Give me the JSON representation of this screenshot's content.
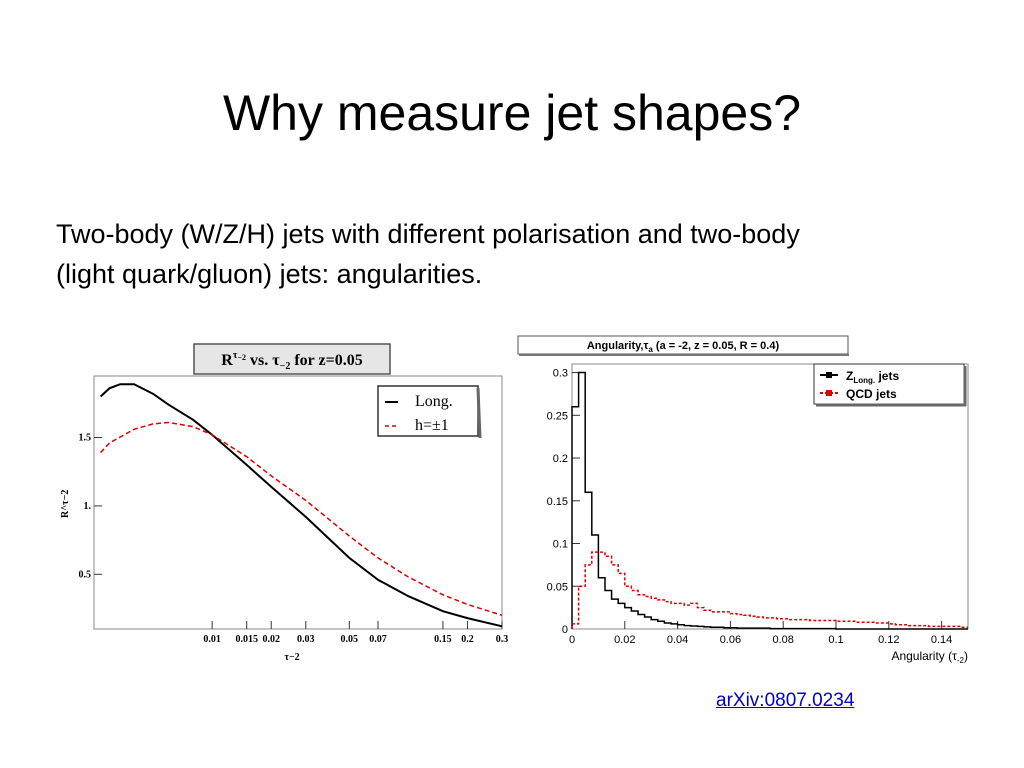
{
  "slide": {
    "title": "Why measure jet shapes?",
    "body_line1": "Two-body (W/Z/H) jets with different polarisation and two-body",
    "body_line2": "(light quark/gluon) jets: angularities.",
    "citation": "arXiv:0807.0234"
  },
  "chart_data": [
    {
      "type": "line",
      "title": "R^τ−2 vs. τ−2 for z=0.05",
      "title_parts": {
        "r": "R",
        "sup": "τ",
        "sup2": "−2",
        "vs": " vs. τ",
        "sub": "−2",
        "rest": " for z=0.05"
      },
      "xlabel": "τ−2",
      "ylabel": "R^τ−2",
      "xscale": "log",
      "xlim": [
        0.0025,
        0.3
      ],
      "ylim": [
        0.1,
        1.95
      ],
      "xticks": [
        0.01,
        0.015,
        0.02,
        0.03,
        0.05,
        0.07,
        0.15,
        0.2,
        0.3
      ],
      "xtick_labels": [
        "0.01",
        "0.015",
        "0.02",
        "0.03",
        "0.05",
        "0.07",
        "0.15",
        "0.2",
        "0.3"
      ],
      "yticks": [
        0.5,
        1.0,
        1.5
      ],
      "ytick_labels": [
        "0.5",
        "1.",
        "1.5"
      ],
      "legend_position": "top-right",
      "series": [
        {
          "name": "Long.",
          "color": "#000000",
          "dash": "solid",
          "x": [
            0.0027,
            0.003,
            0.0034,
            0.004,
            0.005,
            0.006,
            0.008,
            0.01,
            0.015,
            0.02,
            0.03,
            0.05,
            0.07,
            0.1,
            0.15,
            0.2,
            0.3
          ],
          "y": [
            1.8,
            1.86,
            1.89,
            1.89,
            1.82,
            1.74,
            1.63,
            1.52,
            1.3,
            1.14,
            0.92,
            0.62,
            0.46,
            0.34,
            0.23,
            0.18,
            0.12
          ]
        },
        {
          "name": "h=±1",
          "color": "#dd0000",
          "dash": "dashed",
          "x": [
            0.0027,
            0.003,
            0.004,
            0.005,
            0.006,
            0.008,
            0.01,
            0.015,
            0.02,
            0.03,
            0.05,
            0.07,
            0.1,
            0.15,
            0.2,
            0.3
          ],
          "y": [
            1.39,
            1.46,
            1.56,
            1.6,
            1.61,
            1.58,
            1.52,
            1.36,
            1.22,
            1.04,
            0.78,
            0.62,
            0.48,
            0.35,
            0.28,
            0.2
          ]
        }
      ]
    },
    {
      "type": "histogram",
      "title": "Angularity,τa (a = -2, z = 0.05, R = 0.4)",
      "title_parts": {
        "pre": "Angularity,τ",
        "sub": "a",
        "post": " (a = -2, z = 0.05, R = 0.4)"
      },
      "xlabel": "Angularity (τ-2)",
      "xlabel_parts": {
        "pre": "Angularity (τ",
        "sub": "-2",
        "post": ")"
      },
      "xlim": [
        0,
        0.15
      ],
      "ylim": [
        0,
        0.31
      ],
      "xticks": [
        0.02,
        0.04,
        0.06,
        0.08,
        0.1,
        0.12,
        0.14
      ],
      "xtick_labels": [
        "0.02",
        "0.04",
        "0.06",
        "0.08",
        "0.1",
        "0.12",
        "0.14"
      ],
      "yticks": [
        0.05,
        0.1,
        0.15,
        0.2,
        0.25,
        0.3
      ],
      "ytick_labels": [
        "0.05",
        "0.1",
        "0.15",
        "0.2",
        "0.25",
        "0.3"
      ],
      "bin_edges": [
        0,
        0.0025,
        0.005,
        0.0075,
        0.01,
        0.0125,
        0.015,
        0.0175,
        0.02,
        0.0225,
        0.025,
        0.0275,
        0.03,
        0.0325,
        0.035,
        0.0375,
        0.04,
        0.0425,
        0.045,
        0.0475,
        0.05,
        0.0525,
        0.055,
        0.0575,
        0.06,
        0.0625,
        0.065,
        0.0675,
        0.07,
        0.0725,
        0.075,
        0.0775,
        0.08,
        0.0825,
        0.085,
        0.0875,
        0.09,
        0.0925,
        0.095,
        0.0975,
        0.1,
        0.1025,
        0.105,
        0.1075,
        0.11,
        0.1125,
        0.115,
        0.1175,
        0.12,
        0.1225,
        0.125,
        0.1275,
        0.13,
        0.1325,
        0.135,
        0.1375,
        0.14,
        0.1425,
        0.145,
        0.1475,
        0.15
      ],
      "legend_position": "top-right",
      "series": [
        {
          "name": "Z",
          "name_sub": "Long.",
          "name_post": " jets",
          "color": "#000000",
          "dash": "solid",
          "values": [
            0.26,
            0.3,
            0.16,
            0.11,
            0.06,
            0.045,
            0.035,
            0.03,
            0.025,
            0.021,
            0.017,
            0.014,
            0.011,
            0.009,
            0.007,
            0.006,
            0.005,
            0.004,
            0.0035,
            0.003,
            0.0025,
            0.002,
            0.002,
            0.0015,
            0.0015,
            0.001,
            0.001,
            0.001,
            0.001,
            0.001,
            0.0005,
            0.0005,
            0.0005,
            0.0005,
            0.0005,
            0.0005,
            0.0005,
            0.0005,
            0.0005,
            0.0005,
            0,
            0,
            0,
            0,
            0,
            0,
            0,
            0,
            0,
            0,
            0,
            0,
            0,
            0,
            0,
            0,
            0,
            0,
            0,
            0
          ]
        },
        {
          "name": "QCD jets",
          "color": "#dd0000",
          "dash": "dashed",
          "values": [
            0.006,
            0.05,
            0.075,
            0.09,
            0.09,
            0.085,
            0.075,
            0.065,
            0.05,
            0.045,
            0.04,
            0.038,
            0.036,
            0.034,
            0.032,
            0.03,
            0.03,
            0.028,
            0.03,
            0.025,
            0.022,
            0.02,
            0.02,
            0.02,
            0.018,
            0.017,
            0.016,
            0.015,
            0.014,
            0.013,
            0.013,
            0.012,
            0.012,
            0.011,
            0.011,
            0.011,
            0.01,
            0.01,
            0.01,
            0.01,
            0.009,
            0.009,
            0.009,
            0.008,
            0.008,
            0.008,
            0.007,
            0.007,
            0.006,
            0.005,
            0.005,
            0.004,
            0.004,
            0.004,
            0.003,
            0.003,
            0.003,
            0.003,
            0.003,
            0.002
          ]
        }
      ]
    }
  ]
}
